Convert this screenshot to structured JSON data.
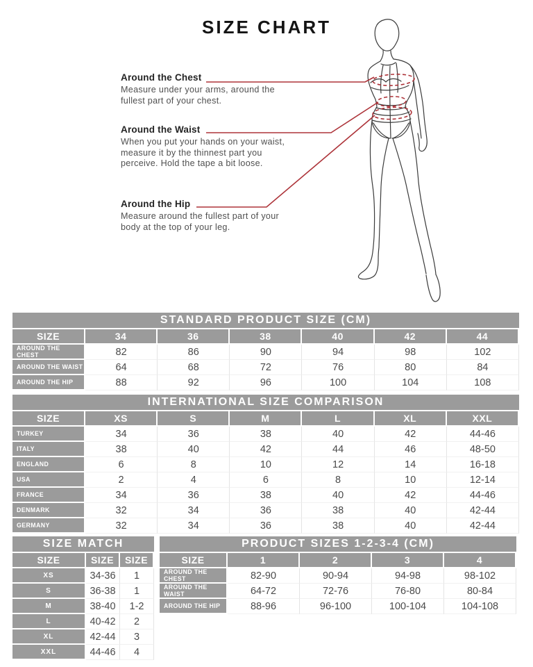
{
  "colors": {
    "accent_red": "#ad3339",
    "table_gray": "#9b9b9b",
    "value_text": "#4a4a4a"
  },
  "header": {
    "title": "SIZE CHART"
  },
  "annotations": [
    {
      "title": "Around the Chest",
      "body": "Measure under your arms, around the\nfullest part of your chest."
    },
    {
      "title": "Around the Waist",
      "body": "When you put your hands on your waist,\nmeasure it by the thinnest part you\nperceive. Hold the tape a bit loose."
    },
    {
      "title": "Around the Hip",
      "body": "Measure around the fullest part of your\nbody at the top of your leg."
    }
  ],
  "standard_table": {
    "title": "STANDARD PRODUCT SIZE (CM)",
    "header": [
      "SIZE",
      "34",
      "36",
      "38",
      "40",
      "42",
      "44"
    ],
    "rows": [
      {
        "label": "AROUND THE CHEST",
        "values": [
          "82",
          "86",
          "90",
          "94",
          "98",
          "102"
        ]
      },
      {
        "label": "AROUND THE WAIST",
        "values": [
          "64",
          "68",
          "72",
          "76",
          "80",
          "84"
        ]
      },
      {
        "label": "AROUND THE HIP",
        "values": [
          "88",
          "92",
          "96",
          "100",
          "104",
          "108"
        ]
      }
    ]
  },
  "international_table": {
    "title": "INTERNATIONAL SIZE COMPARISON",
    "header": [
      "SIZE",
      "XS",
      "S",
      "M",
      "L",
      "XL",
      "XXL"
    ],
    "rows": [
      {
        "label": "TURKEY",
        "values": [
          "34",
          "36",
          "38",
          "40",
          "42",
          "44-46"
        ]
      },
      {
        "label": "ITALY",
        "values": [
          "38",
          "40",
          "42",
          "44",
          "46",
          "48-50"
        ]
      },
      {
        "label": "ENGLAND",
        "values": [
          "6",
          "8",
          "10",
          "12",
          "14",
          "16-18"
        ]
      },
      {
        "label": "USA",
        "values": [
          "2",
          "4",
          "6",
          "8",
          "10",
          "12-14"
        ]
      },
      {
        "label": "FRANCE",
        "values": [
          "34",
          "36",
          "38",
          "40",
          "42",
          "44-46"
        ]
      },
      {
        "label": "DENMARK",
        "values": [
          "32",
          "34",
          "36",
          "38",
          "40",
          "42-44"
        ]
      },
      {
        "label": "GERMANY",
        "values": [
          "32",
          "34",
          "36",
          "38",
          "40",
          "42-44"
        ]
      }
    ]
  },
  "size_match_table": {
    "title": "SIZE MATCH",
    "header": [
      "SIZE",
      "SIZE",
      "SIZE"
    ],
    "rows": [
      {
        "label": "XS",
        "values": [
          "34-36",
          "1"
        ]
      },
      {
        "label": "S",
        "values": [
          "36-38",
          "1"
        ]
      },
      {
        "label": "M",
        "values": [
          "38-40",
          "1-2"
        ]
      },
      {
        "label": "L",
        "values": [
          "40-42",
          "2"
        ]
      },
      {
        "label": "XL",
        "values": [
          "42-44",
          "3"
        ]
      },
      {
        "label": "XXL",
        "values": [
          "44-46",
          "4"
        ]
      }
    ]
  },
  "product_sizes_table": {
    "title": "PRODUCT SIZES 1-2-3-4 (CM)",
    "header": [
      "SIZE",
      "1",
      "2",
      "3",
      "4"
    ],
    "rows": [
      {
        "label": "AROUND THE CHEST",
        "values": [
          "82-90",
          "90-94",
          "94-98",
          "98-102"
        ]
      },
      {
        "label": "AROUND THE WAIST",
        "values": [
          "64-72",
          "72-76",
          "76-80",
          "80-84"
        ]
      },
      {
        "label": "AROUND THE HIP",
        "values": [
          "88-96",
          "96-100",
          "100-104",
          "104-108"
        ]
      }
    ]
  }
}
